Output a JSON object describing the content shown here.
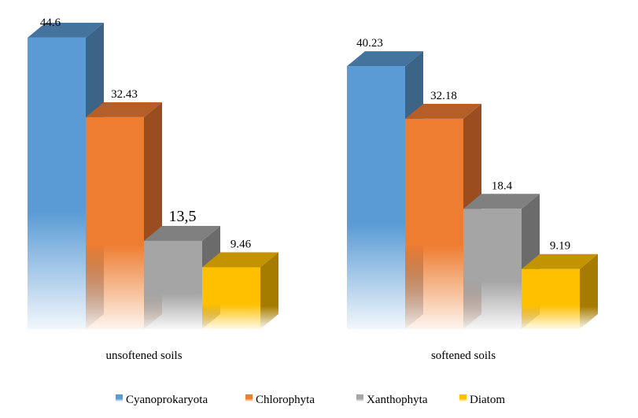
{
  "chart_data": {
    "type": "bar",
    "title": "",
    "xlabel": "",
    "ylabel": "",
    "ylim": [
      0,
      50
    ],
    "grid": false,
    "legend_position": "bottom",
    "categories": [
      "unsoftened soils",
      "softened soils"
    ],
    "series": [
      {
        "name": "Cyanoprokaryota",
        "values": [
          44.6,
          40.23
        ],
        "labels": [
          "44.6",
          "40.23"
        ],
        "color": "#5b9bd5",
        "side": "#3b6487",
        "top": "#44739e"
      },
      {
        "name": "Chlorophyta",
        "values": [
          32.43,
          32.18
        ],
        "labels": [
          "32.43",
          "32.18"
        ],
        "color": "#ed7d31",
        "side": "#9a4e20",
        "top": "#b55e27"
      },
      {
        "name": "Xanthophyta",
        "values": [
          13.5,
          18.4
        ],
        "labels": [
          "13,5",
          "18.4"
        ],
        "color": "#a5a5a5",
        "side": "#6b6b6b",
        "top": "#808080"
      },
      {
        "name": "Diatom",
        "values": [
          9.46,
          9.19
        ],
        "labels": [
          "9.46",
          "9.19"
        ],
        "color": "#ffc000",
        "side": "#a67c00",
        "top": "#c49300"
      }
    ]
  }
}
